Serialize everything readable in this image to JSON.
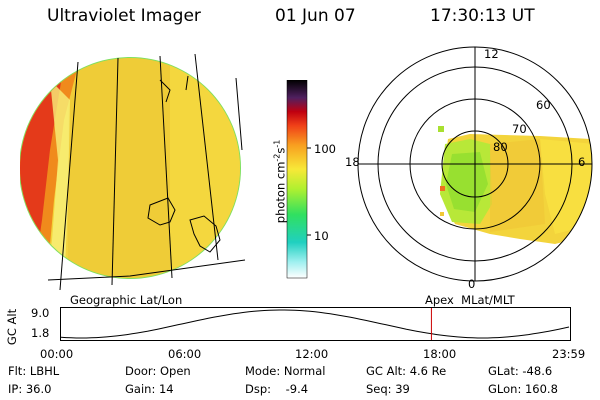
{
  "header": {
    "instrument": "Ultraviolet Imager",
    "date": "01 Jun 07",
    "time": "17:30:13 UT"
  },
  "colorbar": {
    "unit_label": "photon cm",
    "unit_sup1": "-2",
    "unit_mid": "s",
    "unit_sup2": "-1",
    "ticks": [
      "100",
      "10"
    ]
  },
  "polar_plot": {
    "mlt_labels": [
      "12",
      "18",
      "6",
      "0"
    ],
    "lat_labels": [
      "60",
      "70",
      "80"
    ],
    "frame_label": "Apex  MLat/MLT"
  },
  "geo_plot": {
    "frame_label": "Geographic Lat/Lon"
  },
  "altitude_plot": {
    "axis_label": "GC Alt",
    "ytick_top": "9.0",
    "ytick_bottom": "1.8",
    "xticks": [
      "00:00",
      "06:00",
      "12:00",
      "18:00",
      "23:59"
    ],
    "marker_time": "17:30",
    "colors": {
      "curve": "#000000",
      "marker": "#cc0000"
    }
  },
  "info_rows": [
    {
      "filter": "Flt: LBHL",
      "door": "Door: Open",
      "mode": "Mode: Normal",
      "alt": "GC Alt: 4.6 Re",
      "glat": "GLat: -48.6"
    },
    {
      "filter": "IP: 36.0",
      "door": "Gain: 14",
      "mode": "Dsp:    -9.4",
      "alt": "Seq: 39",
      "glat": "GLon: 160.8"
    }
  ]
}
